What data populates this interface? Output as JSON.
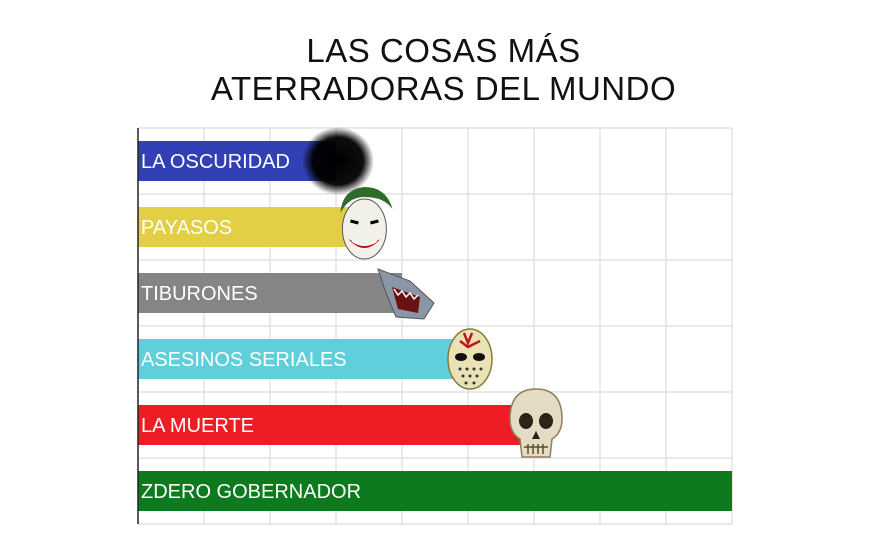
{
  "chart_data": {
    "type": "bar",
    "orientation": "horizontal",
    "title_lines": [
      "LAS COSAS MÁS",
      "ATERRADORAS DEL MUNDO"
    ],
    "categories": [
      "LA OSCURIDAD",
      "PAYASOS",
      "TIBURONES",
      "ASESINOS SERIALES",
      "LA MUERTE",
      "ZDERO GOBERNADOR"
    ],
    "values": [
      3,
      3.4,
      4,
      5,
      6,
      9
    ],
    "xlim": [
      0,
      9
    ],
    "grid": true,
    "bar_colors": [
      "#3240b5",
      "#e2cf43",
      "#858585",
      "#5ecfdb",
      "#ee1c24",
      "#0c7a1d"
    ],
    "bar_icons": [
      "dark-blob-icon",
      "clown-face-icon",
      "shark-icon",
      "hockey-mask-icon",
      "skull-icon",
      ""
    ]
  }
}
